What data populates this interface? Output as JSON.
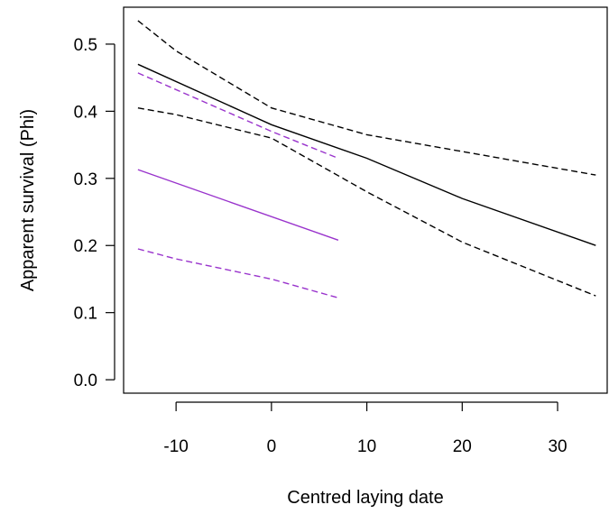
{
  "chart_data": {
    "type": "line",
    "title": "",
    "xlabel": "Centred laying date",
    "ylabel": "Apparent survival (Phi)",
    "xlim": [
      -15.5,
      35.2
    ],
    "ylim": [
      -0.02,
      0.555
    ],
    "x_ticks": [
      -10,
      0,
      10,
      20,
      30
    ],
    "y_ticks": [
      0.0,
      0.1,
      0.2,
      0.3,
      0.4,
      0.5
    ],
    "x_tick_labels": [
      "-10",
      "0",
      "10",
      "20",
      "30"
    ],
    "y_tick_labels": [
      "0.0",
      "0.1",
      "0.2",
      "0.3",
      "0.4",
      "0.5"
    ],
    "grid": false,
    "legend": "none",
    "series": [
      {
        "style": "solid",
        "color": "#000000",
        "x": [
          -14,
          0,
          10,
          20,
          34
        ],
        "y": [
          0.47,
          0.38,
          0.33,
          0.27,
          0.2
        ]
      },
      {
        "style": "dashed",
        "color": "#000000",
        "x": [
          -14,
          -10,
          0,
          10,
          20,
          34
        ],
        "y": [
          0.535,
          0.49,
          0.405,
          0.365,
          0.34,
          0.305
        ]
      },
      {
        "style": "dashed",
        "color": "#000000",
        "x": [
          -14,
          -10,
          0,
          10,
          20,
          34
        ],
        "y": [
          0.405,
          0.395,
          0.36,
          0.28,
          0.205,
          0.125
        ]
      },
      {
        "style": "solid",
        "color": "#9933cc",
        "x": [
          -14,
          7
        ],
        "y": [
          0.313,
          0.208
        ]
      },
      {
        "style": "dashed",
        "color": "#9933cc",
        "x": [
          -14,
          0,
          7
        ],
        "y": [
          0.457,
          0.37,
          0.33
        ]
      },
      {
        "style": "dashed",
        "color": "#9933cc",
        "x": [
          -14,
          -10,
          0,
          7
        ],
        "y": [
          0.195,
          0.18,
          0.15,
          0.122
        ]
      }
    ]
  }
}
